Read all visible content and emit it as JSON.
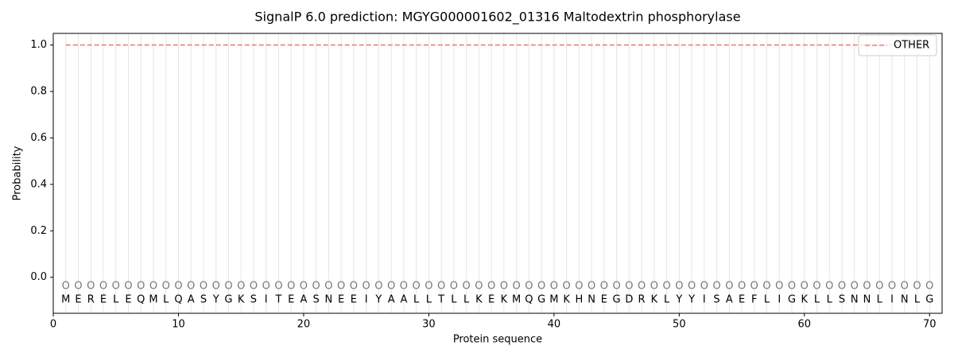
{
  "chart_data": {
    "type": "line",
    "title": "SignalP 6.0 prediction: MGYG000001602_01316 Maltodextrin phosphorylase",
    "xlabel": "Protein sequence",
    "ylabel": "Probability",
    "x": [
      1,
      2,
      3,
      4,
      5,
      6,
      7,
      8,
      9,
      10,
      11,
      12,
      13,
      14,
      15,
      16,
      17,
      18,
      19,
      20,
      21,
      22,
      23,
      24,
      25,
      26,
      27,
      28,
      29,
      30,
      31,
      32,
      33,
      34,
      35,
      36,
      37,
      38,
      39,
      40,
      41,
      42,
      43,
      44,
      45,
      46,
      47,
      48,
      49,
      50,
      51,
      52,
      53,
      54,
      55,
      56,
      57,
      58,
      59,
      60,
      61,
      62,
      63,
      64,
      65,
      66,
      67,
      68,
      69,
      70
    ],
    "residues": [
      "M",
      "E",
      "R",
      "E",
      "L",
      "E",
      "Q",
      "M",
      "L",
      "Q",
      "A",
      "S",
      "Y",
      "G",
      "K",
      "S",
      "I",
      "T",
      "E",
      "A",
      "S",
      "N",
      "E",
      "E",
      "I",
      "Y",
      "A",
      "A",
      "L",
      "L",
      "T",
      "L",
      "L",
      "K",
      "E",
      "K",
      "M",
      "Q",
      "G",
      "M",
      "K",
      "H",
      "N",
      "E",
      "G",
      "D",
      "R",
      "K",
      "L",
      "Y",
      "Y",
      "I",
      "S",
      "A",
      "E",
      "F",
      "L",
      "I",
      "G",
      "K",
      "L",
      "L",
      "S",
      "N",
      "N",
      "L",
      "I",
      "N",
      "L",
      "G"
    ],
    "predicted_labels": [
      "O",
      "O",
      "O",
      "O",
      "O",
      "O",
      "O",
      "O",
      "O",
      "O",
      "O",
      "O",
      "O",
      "O",
      "O",
      "O",
      "O",
      "O",
      "O",
      "O",
      "O",
      "O",
      "O",
      "O",
      "O",
      "O",
      "O",
      "O",
      "O",
      "O",
      "O",
      "O",
      "O",
      "O",
      "O",
      "O",
      "O",
      "O",
      "O",
      "O",
      "O",
      "O",
      "O",
      "O",
      "O",
      "O",
      "O",
      "O",
      "O",
      "O",
      "O",
      "O",
      "O",
      "O",
      "O",
      "O",
      "O",
      "O",
      "O",
      "O",
      "O",
      "O",
      "O",
      "O",
      "O",
      "O",
      "O",
      "O",
      "O",
      "O"
    ],
    "series": [
      {
        "name": "OTHER",
        "color": "#f07c7c",
        "dashed": true,
        "values": [
          1,
          1,
          1,
          1,
          1,
          1,
          1,
          1,
          1,
          1,
          1,
          1,
          1,
          1,
          1,
          1,
          1,
          1,
          1,
          1,
          1,
          1,
          1,
          1,
          1,
          1,
          1,
          1,
          1,
          1,
          1,
          1,
          1,
          1,
          1,
          1,
          1,
          1,
          1,
          1,
          1,
          1,
          1,
          1,
          1,
          1,
          1,
          1,
          1,
          1,
          1,
          1,
          1,
          1,
          1,
          1,
          1,
          1,
          1,
          1,
          1,
          1,
          1,
          1,
          1,
          1,
          1,
          1,
          1,
          1
        ]
      }
    ],
    "xlim": [
      0,
      71
    ],
    "ylim": [
      -0.155,
      1.05
    ],
    "xticks": [
      0,
      10,
      20,
      30,
      40,
      50,
      60,
      70
    ],
    "yticks": [
      {
        "value": 0,
        "label": "0.0"
      },
      {
        "value": 0.2,
        "label": "0.2"
      },
      {
        "value": 0.4,
        "label": "0.4"
      },
      {
        "value": 0.6,
        "label": "0.6"
      },
      {
        "value": 0.8,
        "label": "0.8"
      },
      {
        "value": 1,
        "label": "1.0"
      }
    ],
    "legend": "upper right"
  }
}
